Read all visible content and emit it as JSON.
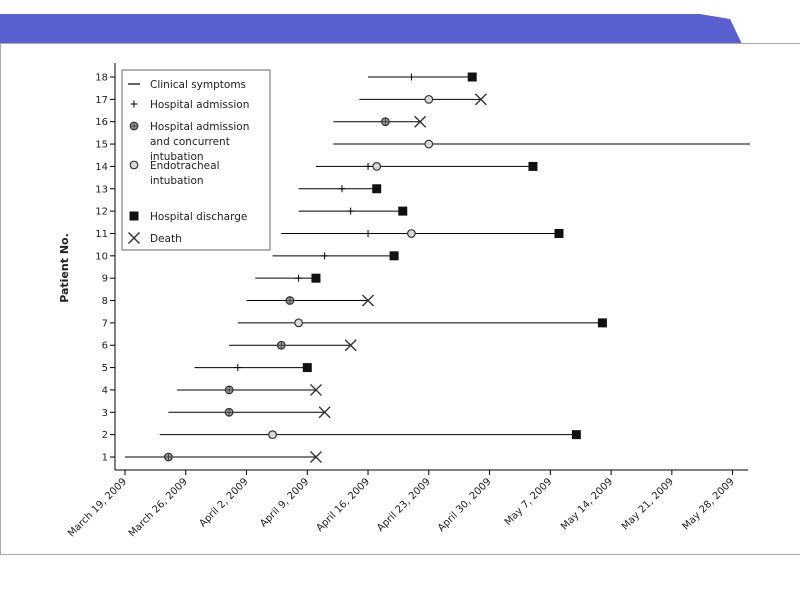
{
  "chart_data": {
    "type": "timeline",
    "ylabel": "Patient No.",
    "x_ticks": [
      "March 19, 2009",
      "March 26, 2009",
      "April 2, 2009",
      "April 9, 2009",
      "April 16, 2009",
      "April 23, 2009",
      "April 30, 2009",
      "May 7, 2009",
      "May 14, 2009",
      "May 21, 2009",
      "May 28, 2009"
    ],
    "x_start": "2009-03-19",
    "x_end": "2009-05-30",
    "y_ticks": [
      "1",
      "2",
      "3",
      "4",
      "5",
      "6",
      "7",
      "8",
      "9",
      "10",
      "11",
      "12",
      "13",
      "14",
      "15",
      "16",
      "17",
      "18"
    ],
    "legend": {
      "placement": "top-left",
      "items": [
        {
          "marker": "line",
          "label": [
            "Clinical symptoms"
          ]
        },
        {
          "marker": "plus",
          "label": [
            "Hospital admission"
          ]
        },
        {
          "marker": "circle-plus",
          "label": [
            "Hospital admission",
            "and concurrent",
            "intubation"
          ]
        },
        {
          "marker": "circle",
          "label": [
            "Endotracheal",
            "intubation"
          ]
        },
        {
          "marker": "square",
          "label": [
            "Hospital discharge"
          ]
        },
        {
          "marker": "x",
          "label": [
            "Death"
          ]
        }
      ]
    },
    "patients": [
      {
        "id": 1,
        "symptoms": "2009-03-19",
        "admission_intubation": "2009-03-24",
        "end": "2009-04-10",
        "outcome": "death"
      },
      {
        "id": 2,
        "symptoms": "2009-03-23",
        "intubation": "2009-04-05",
        "end": "2009-05-10",
        "outcome": "discharge"
      },
      {
        "id": 3,
        "symptoms": "2009-03-24",
        "admission_intubation": "2009-03-31",
        "end": "2009-04-11",
        "outcome": "death"
      },
      {
        "id": 4,
        "symptoms": "2009-03-25",
        "admission_intubation": "2009-03-31",
        "end": "2009-04-10",
        "outcome": "death"
      },
      {
        "id": 5,
        "symptoms": "2009-03-27",
        "admission": "2009-04-01",
        "end": "2009-04-09",
        "outcome": "discharge"
      },
      {
        "id": 6,
        "symptoms": "2009-03-31",
        "admission_intubation": "2009-04-06",
        "end": "2009-04-14",
        "outcome": "death"
      },
      {
        "id": 7,
        "symptoms": "2009-04-01",
        "intubation": "2009-04-08",
        "end": "2009-05-13",
        "outcome": "discharge"
      },
      {
        "id": 8,
        "symptoms": "2009-04-02",
        "admission_intubation": "2009-04-07",
        "end": "2009-04-16",
        "outcome": "death"
      },
      {
        "id": 9,
        "symptoms": "2009-04-03",
        "admission": "2009-04-08",
        "end": "2009-04-10",
        "outcome": "discharge"
      },
      {
        "id": 10,
        "symptoms": "2009-04-05",
        "admission": "2009-04-11",
        "end": "2009-04-19",
        "outcome": "discharge"
      },
      {
        "id": 11,
        "symptoms": "2009-04-06",
        "admission": "2009-04-16",
        "intubation": "2009-04-21",
        "end": "2009-05-08",
        "outcome": "discharge"
      },
      {
        "id": 12,
        "symptoms": "2009-04-08",
        "admission": "2009-04-14",
        "end": "2009-04-20",
        "outcome": "discharge"
      },
      {
        "id": 13,
        "symptoms": "2009-04-08",
        "admission": "2009-04-13",
        "end": "2009-04-17",
        "outcome": "discharge"
      },
      {
        "id": 14,
        "symptoms": "2009-04-10",
        "admission": "2009-04-16",
        "intubation": "2009-04-17",
        "end": "2009-05-05",
        "outcome": "discharge"
      },
      {
        "id": 15,
        "symptoms": "2009-04-12",
        "intubation": "2009-04-23",
        "end": "2009-05-30",
        "outcome": "ongoing"
      },
      {
        "id": 16,
        "symptoms": "2009-04-12",
        "admission_intubation": "2009-04-18",
        "end": "2009-04-22",
        "outcome": "death"
      },
      {
        "id": 17,
        "symptoms": "2009-04-15",
        "intubation": "2009-04-23",
        "end": "2009-04-29",
        "outcome": "death"
      },
      {
        "id": 18,
        "symptoms": "2009-04-16",
        "admission": "2009-04-21",
        "end": "2009-04-28",
        "outcome": "discharge"
      }
    ]
  }
}
